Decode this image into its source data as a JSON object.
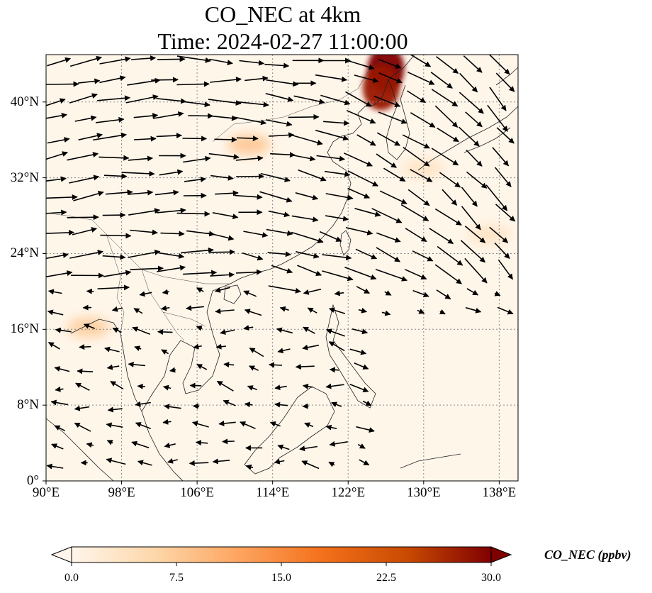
{
  "title": {
    "line1": "CO_NEC at 4km",
    "line2": "Time: 2024-02-27 11:00:00"
  },
  "map": {
    "lon_range": [
      90,
      140
    ],
    "lat_range": [
      0,
      45
    ],
    "gridlines": "dotted",
    "lat_ticks": [
      {
        "value": 0,
        "label": "0°"
      },
      {
        "value": 8,
        "label": "8°N"
      },
      {
        "value": 16,
        "label": "16°N"
      },
      {
        "value": 24,
        "label": "24°N"
      },
      {
        "value": 32,
        "label": "32°N"
      },
      {
        "value": 40,
        "label": "40°N"
      }
    ],
    "lon_ticks": [
      {
        "value": 90,
        "label": "90°E"
      },
      {
        "value": 98,
        "label": "98°E"
      },
      {
        "value": 106,
        "label": "106°E"
      },
      {
        "value": 114,
        "label": "114°E"
      },
      {
        "value": 122,
        "label": "122°E"
      },
      {
        "value": 130,
        "label": "130°E"
      },
      {
        "value": 138,
        "label": "138°E"
      }
    ],
    "concentration_hotspots": [
      {
        "lon": 126.0,
        "lat": 43.5,
        "value": 30
      },
      {
        "lon": 125.5,
        "lat": 41.5,
        "value": 28
      },
      {
        "lon": 111.5,
        "lat": 35.5,
        "value": 9
      },
      {
        "lon": 94.5,
        "lat": 16.2,
        "value": 8
      },
      {
        "lon": 130.0,
        "lat": 33.0,
        "value": 4
      },
      {
        "lon": 137.0,
        "lat": 26.0,
        "value": 4
      }
    ]
  },
  "colorbar": {
    "label": "CO_NEC (ppbv)",
    "min": 0,
    "max": 30,
    "extend": "both",
    "colormap": [
      "#fff5eb",
      "#fdd7a9",
      "#fda45f",
      "#f3701b",
      "#c94a02",
      "#7f0000"
    ],
    "ticks": [
      {
        "value": 0,
        "label": "0.0"
      },
      {
        "value": 7.5,
        "label": "7.5"
      },
      {
        "value": 15,
        "label": "15.0"
      },
      {
        "value": 22.5,
        "label": "22.5"
      },
      {
        "value": 30,
        "label": "30.0"
      }
    ]
  },
  "colors": {
    "background_field": "#fff6ea",
    "coastline": "#222222",
    "wind_arrow": "#000000",
    "grid": "#888888"
  }
}
